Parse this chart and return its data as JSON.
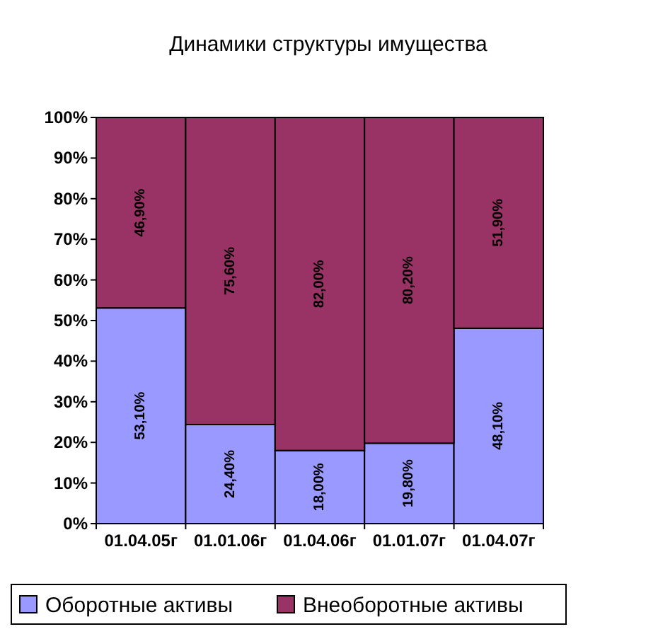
{
  "chart_data": {
    "type": "bar",
    "title": "Динамики структуры имущества",
    "stacked": true,
    "legend": "bottom",
    "categories": [
      "01.04.05г",
      "01.01.06г",
      "01.04.06г",
      "01.01.07г",
      "01.04.07г"
    ],
    "ylim": [
      0,
      100
    ],
    "yticks": [
      {
        "value": 0,
        "label": "0%"
      },
      {
        "value": 10,
        "label": "10%"
      },
      {
        "value": 20,
        "label": "20%"
      },
      {
        "value": 30,
        "label": "30%"
      },
      {
        "value": 40,
        "label": "40%"
      },
      {
        "value": 50,
        "label": "50%"
      },
      {
        "value": 60,
        "label": "60%"
      },
      {
        "value": 70,
        "label": "70%"
      },
      {
        "value": 80,
        "label": "80%"
      },
      {
        "value": 90,
        "label": "90%"
      },
      {
        "value": 100,
        "label": "100%"
      }
    ],
    "series": [
      {
        "name": "Оборотные активы",
        "color": "#9999ff",
        "values": [
          53.1,
          24.4,
          18,
          19.8,
          48.1
        ],
        "value_labels": [
          "53,10%",
          "24,40%",
          "18,00%",
          "19,80%",
          "48,10%"
        ]
      },
      {
        "name": "Внеоборотные активы",
        "color": "#993366",
        "values": [
          46.9,
          75.6,
          82,
          80.2,
          51.9
        ],
        "value_labels": [
          "46,90%",
          "75,60%",
          "82,00%",
          "80,20%",
          "51,90%"
        ]
      }
    ]
  }
}
